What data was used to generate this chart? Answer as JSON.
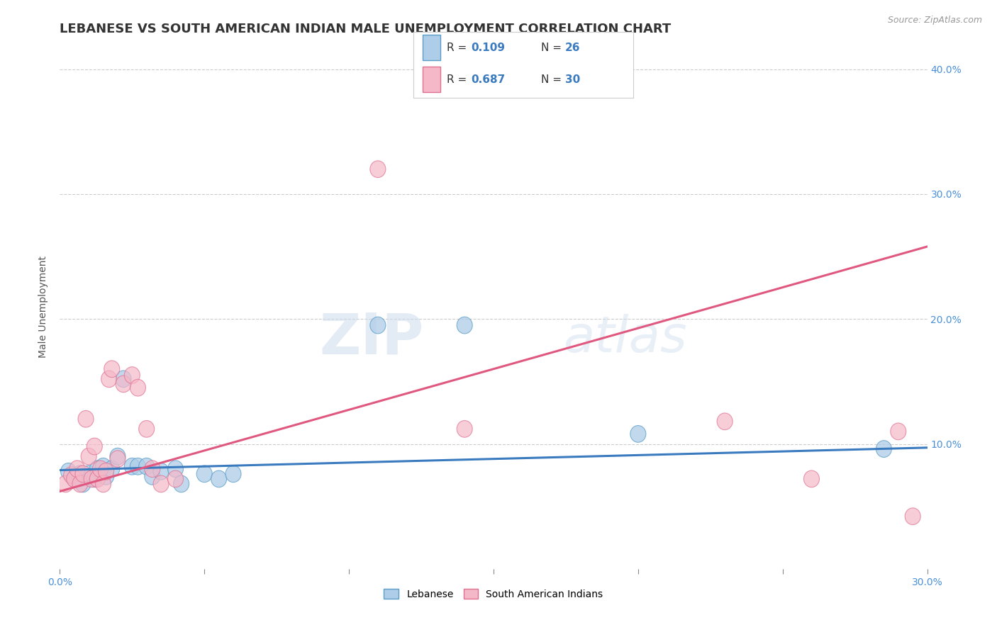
{
  "title": "LEBANESE VS SOUTH AMERICAN INDIAN MALE UNEMPLOYMENT CORRELATION CHART",
  "source_text": "Source: ZipAtlas.com",
  "ylabel": "Male Unemployment",
  "xlim": [
    0.0,
    0.3
  ],
  "ylim": [
    0.0,
    0.42
  ],
  "xtick_labels": [
    "0.0%",
    "",
    "",
    "",
    "",
    "",
    "30.0%"
  ],
  "xtick_values": [
    0.0,
    0.05,
    0.1,
    0.15,
    0.2,
    0.25,
    0.3
  ],
  "ytick_labels": [
    "10.0%",
    "20.0%",
    "30.0%",
    "40.0%"
  ],
  "ytick_values": [
    0.1,
    0.2,
    0.3,
    0.4
  ],
  "watermark_zip": "ZIP",
  "watermark_atlas": "atlas",
  "legend_r_blue": "0.109",
  "legend_n_blue": "26",
  "legend_r_pink": "0.687",
  "legend_n_pink": "30",
  "blue_fill": "#aecde8",
  "blue_edge": "#5b9dc9",
  "pink_fill": "#f5b8c8",
  "pink_edge": "#e07090",
  "blue_line": "#3a7abf",
  "pink_line": "#e05880",
  "blue_scatter": [
    [
      0.003,
      0.078
    ],
    [
      0.005,
      0.072
    ],
    [
      0.007,
      0.076
    ],
    [
      0.008,
      0.068
    ],
    [
      0.01,
      0.076
    ],
    [
      0.012,
      0.072
    ],
    [
      0.013,
      0.08
    ],
    [
      0.015,
      0.082
    ],
    [
      0.016,
      0.074
    ],
    [
      0.018,
      0.08
    ],
    [
      0.02,
      0.09
    ],
    [
      0.022,
      0.152
    ],
    [
      0.025,
      0.082
    ],
    [
      0.027,
      0.082
    ],
    [
      0.03,
      0.082
    ],
    [
      0.032,
      0.074
    ],
    [
      0.035,
      0.078
    ],
    [
      0.04,
      0.08
    ],
    [
      0.042,
      0.068
    ],
    [
      0.05,
      0.076
    ],
    [
      0.055,
      0.072
    ],
    [
      0.06,
      0.076
    ],
    [
      0.11,
      0.195
    ],
    [
      0.14,
      0.195
    ],
    [
      0.2,
      0.108
    ],
    [
      0.285,
      0.096
    ]
  ],
  "pink_scatter": [
    [
      0.002,
      0.068
    ],
    [
      0.004,
      0.075
    ],
    [
      0.005,
      0.072
    ],
    [
      0.006,
      0.08
    ],
    [
      0.007,
      0.068
    ],
    [
      0.008,
      0.076
    ],
    [
      0.009,
      0.12
    ],
    [
      0.01,
      0.09
    ],
    [
      0.011,
      0.072
    ],
    [
      0.012,
      0.098
    ],
    [
      0.013,
      0.072
    ],
    [
      0.014,
      0.08
    ],
    [
      0.015,
      0.068
    ],
    [
      0.016,
      0.078
    ],
    [
      0.017,
      0.152
    ],
    [
      0.018,
      0.16
    ],
    [
      0.02,
      0.088
    ],
    [
      0.022,
      0.148
    ],
    [
      0.025,
      0.155
    ],
    [
      0.027,
      0.145
    ],
    [
      0.03,
      0.112
    ],
    [
      0.032,
      0.08
    ],
    [
      0.035,
      0.068
    ],
    [
      0.04,
      0.072
    ],
    [
      0.11,
      0.32
    ],
    [
      0.14,
      0.112
    ],
    [
      0.23,
      0.118
    ],
    [
      0.26,
      0.072
    ],
    [
      0.29,
      0.11
    ],
    [
      0.295,
      0.042
    ]
  ],
  "blue_trendline": [
    [
      0.0,
      0.079
    ],
    [
      0.3,
      0.097
    ]
  ],
  "pink_trendline": [
    [
      0.0,
      0.062
    ],
    [
      0.3,
      0.258
    ]
  ],
  "background_color": "#ffffff",
  "grid_color": "#cccccc",
  "title_fontsize": 13,
  "axis_label_fontsize": 10,
  "tick_fontsize": 10,
  "legend_fontsize": 11
}
